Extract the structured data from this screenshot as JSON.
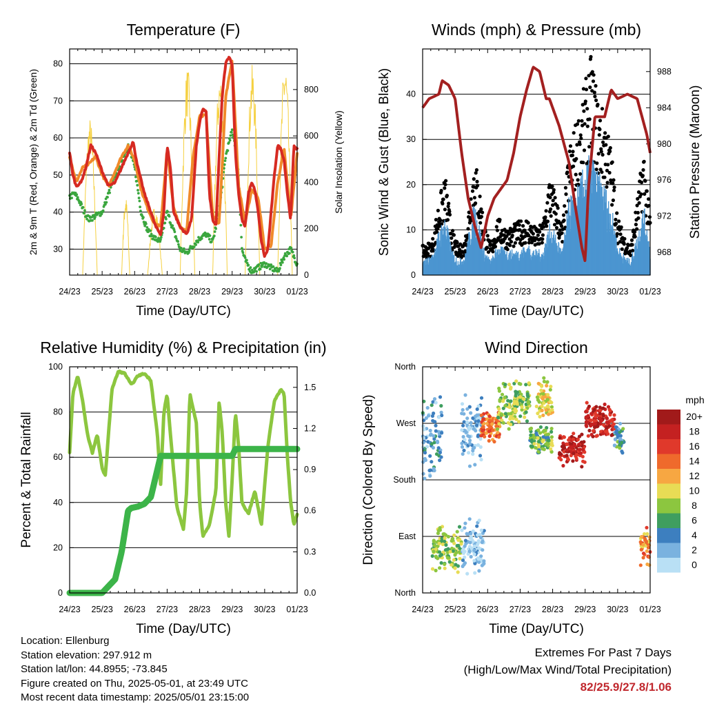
{
  "chart_data": [
    {
      "type": "line",
      "title": "Temperature (F)",
      "xlabel": "Time (Day/UTC)",
      "ylabel": "2m & 9m T (Red, Orange) & 2m Td (Green)",
      "y2label": "Solar Insolation (Yellow)",
      "x_ticks": [
        "24/23",
        "25/23",
        "26/23",
        "27/23",
        "28/23",
        "29/23",
        "30/23",
        "01/23"
      ],
      "xlim": [
        0,
        7
      ],
      "ylim": [
        23,
        84
      ],
      "y_ticks": [
        30,
        40,
        50,
        60,
        70,
        80
      ],
      "y2lim": [
        0,
        975
      ],
      "y2_ticks": [
        0,
        200,
        400,
        600,
        800
      ],
      "grid": true,
      "series": [
        {
          "name": "2m T",
          "color": "#d62a22",
          "x": [
            0,
            0.1,
            0.2,
            0.35,
            0.5,
            0.65,
            0.8,
            1.0,
            1.2,
            1.4,
            1.6,
            1.8,
            1.95,
            2.1,
            2.3,
            2.5,
            2.65,
            2.8,
            2.9,
            3.0,
            3.1,
            3.2,
            3.4,
            3.6,
            3.75,
            3.9,
            4.0,
            4.1,
            4.2,
            4.3,
            4.4,
            4.5,
            4.6,
            4.7,
            4.8,
            4.9,
            5.0,
            5.1,
            5.2,
            5.3,
            5.4,
            5.5,
            5.6,
            5.7,
            5.8,
            5.9,
            6.0,
            6.1,
            6.2,
            6.3,
            6.4,
            6.5,
            6.6,
            6.7,
            6.8,
            6.9,
            7.0
          ],
          "y": [
            56,
            50,
            47,
            48,
            52,
            58,
            56,
            51,
            47,
            48,
            52,
            56,
            59,
            52,
            45,
            40,
            36,
            34,
            40,
            58,
            52,
            40,
            36,
            34,
            38,
            58,
            64,
            68,
            67,
            45,
            38,
            36,
            55,
            72,
            80,
            82,
            80,
            56,
            45,
            38,
            36,
            45,
            48,
            46,
            40,
            32,
            28,
            30,
            40,
            50,
            58,
            57,
            54,
            45,
            38,
            58,
            57
          ]
        },
        {
          "name": "9m T",
          "color": "#f08a2a",
          "x": [
            0,
            0.2,
            0.4,
            0.6,
            0.8,
            1.0,
            1.2,
            1.4,
            1.6,
            1.8,
            2.0,
            2.2,
            2.4,
            2.6,
            2.8,
            3.0,
            3.2,
            3.4,
            3.6,
            3.8,
            4.0,
            4.2,
            4.4,
            4.6,
            4.8,
            5.0,
            5.2,
            5.4,
            5.6,
            5.8,
            6.0,
            6.2,
            6.4,
            6.6,
            6.8,
            7.0
          ],
          "y": [
            55,
            48,
            52,
            53,
            55,
            50,
            47,
            51,
            55,
            58,
            54,
            46,
            41,
            37,
            36,
            57,
            41,
            36,
            35,
            55,
            66,
            66,
            39,
            37,
            71,
            81,
            47,
            37,
            46,
            44,
            30,
            31,
            48,
            57,
            38,
            56
          ]
        },
        {
          "name": "2m Td",
          "color": "#3aa63e",
          "x": [
            0,
            0.15,
            0.3,
            0.45,
            0.6,
            0.8,
            1.0,
            1.2,
            1.4,
            1.6,
            1.8,
            2.0,
            2.2,
            2.4,
            2.6,
            2.8,
            3.0,
            3.2,
            3.4,
            3.6,
            3.8,
            4.0,
            4.2,
            4.4,
            4.6,
            4.8,
            5.0,
            5.1,
            5.2,
            5.3,
            5.4,
            5.6,
            5.8,
            6.0,
            6.2,
            6.4,
            6.6,
            6.8,
            6.9,
            7.0
          ],
          "y": [
            44,
            45,
            43,
            40,
            38,
            39,
            40,
            45,
            50,
            54,
            58,
            52,
            40,
            35,
            33,
            32,
            40,
            35,
            30,
            29,
            31,
            33,
            34,
            32,
            40,
            55,
            62,
            58,
            50,
            30,
            27,
            24,
            25,
            26,
            25,
            24,
            28,
            30,
            28,
            26
          ]
        }
      ],
      "insolation": {
        "name": "Solar Insolation",
        "color": "#f5d040",
        "days": [
          {
            "start": 0.4,
            "peak": 0.62,
            "end": 0.85,
            "value": 680
          },
          {
            "start": 1.6,
            "peak": 1.72,
            "end": 1.85,
            "value": 340
          },
          {
            "start": 2.4,
            "peak": 2.62,
            "end": 2.85,
            "value": 300
          },
          {
            "start": 3.4,
            "peak": 3.62,
            "end": 3.85,
            "value": 900
          },
          {
            "start": 4.4,
            "peak": 4.62,
            "end": 4.85,
            "value": 880
          },
          {
            "start": 5.4,
            "peak": 5.62,
            "end": 5.85,
            "value": 910
          },
          {
            "start": 6.4,
            "peak": 6.62,
            "end": 6.85,
            "value": 940
          }
        ]
      }
    },
    {
      "type": "scatter",
      "title": "Winds (mph) & Pressure (mb)",
      "xlabel": "Time (Day/UTC)",
      "ylabel": "Sonic Wind & Gust (Blue, Black)",
      "y2label": "Station Pressure (Maroon)",
      "x_ticks": [
        "24/23",
        "25/23",
        "26/23",
        "27/23",
        "28/23",
        "29/23",
        "30/23",
        "01/23"
      ],
      "xlim": [
        0,
        7
      ],
      "ylim": [
        0,
        50
      ],
      "y_ticks": [
        0,
        10,
        20,
        30,
        40
      ],
      "y2lim": [
        965.5,
        990.5
      ],
      "y2_ticks": [
        968,
        972,
        976,
        980,
        984,
        988
      ],
      "grid": true,
      "wind_profile": {
        "x": [
          0,
          0.3,
          0.5,
          0.7,
          0.9,
          1.1,
          1.3,
          1.6,
          1.9,
          2.1,
          2.3,
          2.6,
          2.9,
          3.2,
          3.5,
          3.7,
          3.9,
          4.1,
          4.3,
          4.5,
          4.8,
          5.0,
          5.2,
          5.4,
          5.6,
          5.8,
          6.0,
          6.2,
          6.4,
          6.6,
          6.8,
          7.0
        ],
        "sustained": [
          3,
          4,
          9,
          12,
          5,
          3,
          4,
          15,
          5,
          3,
          6,
          5,
          5,
          6,
          5,
          5,
          10,
          8,
          5,
          15,
          18,
          22,
          24,
          20,
          18,
          14,
          6,
          4,
          3,
          8,
          14,
          6
        ],
        "gust": [
          5,
          6,
          13,
          17,
          8,
          5,
          6,
          21,
          9,
          5,
          10,
          8,
          9,
          10,
          8,
          9,
          17,
          14,
          8,
          22,
          28,
          33,
          38,
          30,
          28,
          22,
          10,
          7,
          5,
          13,
          22,
          10
        ]
      },
      "series": [
        {
          "name": "Station Pressure",
          "color": "#a32020",
          "x": [
            0,
            0.2,
            0.5,
            0.6,
            0.8,
            1.0,
            1.2,
            1.4,
            1.6,
            1.8,
            2.0,
            2.2,
            2.4,
            2.6,
            2.8,
            3.0,
            3.2,
            3.4,
            3.6,
            3.8,
            3.9,
            4.2,
            4.5,
            4.7,
            4.9,
            5.0,
            5.1,
            5.3,
            5.6,
            5.8,
            6.0,
            6.3,
            6.6,
            6.9,
            7.0
          ],
          "y": [
            984,
            985,
            985.5,
            987,
            986.5,
            985,
            979,
            974,
            971,
            968.5,
            972,
            974,
            975,
            976,
            979,
            983,
            986,
            988.5,
            988,
            985,
            985,
            982,
            978,
            973,
            968.5,
            967,
            975,
            983,
            983,
            986,
            985,
            985.5,
            985,
            981,
            979
          ]
        }
      ]
    },
    {
      "type": "line",
      "title": "Relative Humidity (%) & Precipitation (in)",
      "xlabel": "Time (Day/UTC)",
      "ylabel": "Percent & Total Rainfall",
      "x_ticks": [
        "24/23",
        "25/23",
        "26/23",
        "27/23",
        "28/23",
        "29/23",
        "30/23",
        "01/23"
      ],
      "xlim": [
        0,
        7
      ],
      "ylim": [
        0,
        100
      ],
      "y_ticks": [
        0,
        20,
        40,
        60,
        80,
        100
      ],
      "y2lim": [
        0,
        1.65
      ],
      "y2_ticks": [
        0.0,
        0.3,
        0.6,
        0.9,
        1.2,
        1.5
      ],
      "grid": true,
      "series": [
        {
          "name": "Relative Humidity",
          "color": "#8cc63f",
          "x": [
            0,
            0.1,
            0.25,
            0.4,
            0.55,
            0.7,
            0.85,
            1.0,
            1.1,
            1.3,
            1.5,
            1.7,
            1.9,
            2.1,
            2.3,
            2.5,
            2.7,
            2.8,
            2.9,
            3.0,
            3.1,
            3.3,
            3.5,
            3.6,
            3.7,
            3.9,
            4.0,
            4.1,
            4.3,
            4.5,
            4.6,
            4.7,
            4.8,
            4.9,
            5.0,
            5.1,
            5.2,
            5.3,
            5.5,
            5.7,
            5.9,
            6.1,
            6.3,
            6.5,
            6.6,
            6.7,
            6.8,
            6.9,
            7.0
          ],
          "y": [
            62,
            88,
            96,
            85,
            70,
            62,
            70,
            55,
            52,
            90,
            98,
            97,
            92,
            96,
            97,
            94,
            70,
            48,
            80,
            88,
            70,
            38,
            28,
            45,
            88,
            75,
            40,
            25,
            30,
            45,
            85,
            70,
            40,
            25,
            50,
            80,
            65,
            40,
            35,
            45,
            30,
            65,
            85,
            90,
            88,
            60,
            40,
            30,
            35
          ]
        },
        {
          "name": "Total Precipitation",
          "color": "#3cb449",
          "x": [
            0,
            1.0,
            1.2,
            1.4,
            1.6,
            1.8,
            1.9,
            2.1,
            2.3,
            2.5,
            2.7,
            2.8,
            3.5,
            3.9,
            4.0,
            5.0,
            5.1,
            5.5,
            6.0,
            7.0
          ],
          "y": [
            0,
            0,
            0.05,
            0.1,
            0.3,
            0.6,
            0.62,
            0.63,
            0.65,
            0.7,
            0.9,
            1.0,
            1.0,
            1.0,
            1.0,
            1.0,
            1.05,
            1.05,
            1.05,
            1.05
          ]
        }
      ]
    },
    {
      "type": "scatter",
      "title": "Wind Direction",
      "xlabel": "Time (Day/UTC)",
      "ylabel": "Direction (Colored By Speed)",
      "x_ticks": [
        "24/23",
        "25/23",
        "26/23",
        "27/23",
        "28/23",
        "29/23",
        "30/23",
        "01/23"
      ],
      "xlim": [
        0,
        7
      ],
      "ylim": [
        0,
        360
      ],
      "y_ticks": [
        {
          "value": 0,
          "label": "North"
        },
        {
          "value": 90,
          "label": "East"
        },
        {
          "value": 180,
          "label": "South"
        },
        {
          "value": 270,
          "label": "West"
        },
        {
          "value": 360,
          "label": "North"
        }
      ],
      "grid": true,
      "clusters": [
        {
          "x0": 0,
          "x1": 0.6,
          "dir": 250,
          "spread": 80,
          "speed": 3
        },
        {
          "x0": 0.3,
          "x1": 1.2,
          "dir": 70,
          "spread": 40,
          "speed": 8
        },
        {
          "x0": 1.2,
          "x1": 1.9,
          "dir": 260,
          "spread": 60,
          "speed": 2
        },
        {
          "x0": 1.2,
          "x1": 1.9,
          "dir": 70,
          "spread": 50,
          "speed": 1
        },
        {
          "x0": 1.8,
          "x1": 2.4,
          "dir": 265,
          "spread": 25,
          "speed": 14
        },
        {
          "x0": 2.3,
          "x1": 3.3,
          "dir": 300,
          "spread": 45,
          "speed": 8
        },
        {
          "x0": 3.3,
          "x1": 4.0,
          "dir": 245,
          "spread": 25,
          "speed": 7
        },
        {
          "x0": 3.5,
          "x1": 4.0,
          "dir": 310,
          "spread": 35,
          "speed": 10
        },
        {
          "x0": 4.2,
          "x1": 5.0,
          "dir": 230,
          "spread": 30,
          "speed": 18
        },
        {
          "x0": 5.0,
          "x1": 5.9,
          "dir": 275,
          "spread": 30,
          "speed": 18
        },
        {
          "x0": 5.9,
          "x1": 6.2,
          "dir": 245,
          "spread": 25,
          "speed": 5
        },
        {
          "x0": 6.7,
          "x1": 7.0,
          "dir": 75,
          "spread": 35,
          "speed": 13
        }
      ],
      "colorbar": {
        "unit": "mph",
        "levels": [
          "20+",
          "18",
          "16",
          "14",
          "12",
          "10",
          "8",
          "6",
          "4",
          "2",
          "0"
        ],
        "colors": [
          "#a11a1a",
          "#c42121",
          "#e0392b",
          "#ef6a2c",
          "#f7a742",
          "#e8dc55",
          "#8cc63f",
          "#3f9e5f",
          "#3d7fbf",
          "#7ab2df",
          "#b9e0f5"
        ]
      }
    }
  ],
  "info": [
    "Location: Ellenburg",
    "Station elevation: 297.912 m",
    "Station lat/lon: 44.8955; -73.845",
    "Figure created on Thu, 2025-05-01, at 23:49 UTC",
    "Most recent data timestamp: 2025/05/01 23:15:00"
  ],
  "extremes": {
    "line1": "Extremes For Past 7 Days",
    "line2": "(High/Low/Max Wind/Total Precipitation)",
    "values": "82/25.9/27.8/1.06"
  }
}
